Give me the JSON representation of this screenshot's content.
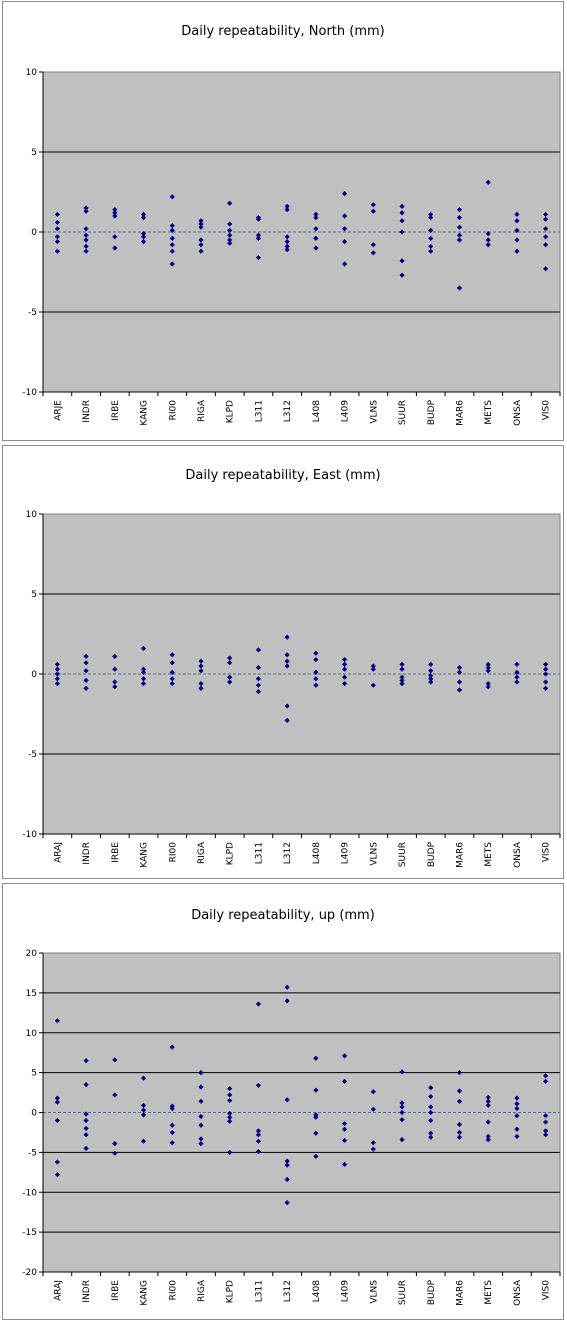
{
  "chart_data": [
    {
      "type": "scatter",
      "title": "Daily repeatability, North (mm)",
      "categories": [
        "ARJE",
        "INDR",
        "IRBE",
        "KANG",
        "RI00",
        "RIGA",
        "KLPD",
        "L311",
        "L312",
        "L408",
        "L409",
        "VLNS",
        "SUUR",
        "BUDP",
        "MAR6",
        "METS",
        "ONSA",
        "VIS0"
      ],
      "ylim": [
        -10,
        10
      ],
      "yticks": [
        -10,
        -5,
        0,
        5,
        10
      ],
      "gridlines": [
        -5,
        5
      ],
      "points": [
        [
          1.1,
          0.6,
          0.2,
          -0.3,
          -0.6,
          -1.2
        ],
        [
          1.5,
          1.3,
          0.2,
          -0.2,
          -0.5,
          -0.9,
          -1.2
        ],
        [
          1.4,
          1.2,
          1.0,
          -0.3,
          -1.0
        ],
        [
          1.1,
          0.9,
          -0.1,
          -0.3,
          -0.6
        ],
        [
          2.2,
          0.4,
          0.1,
          -0.4,
          -0.8,
          -1.2,
          -2.0
        ],
        [
          0.7,
          0.5,
          0.3,
          -0.5,
          -0.8,
          -1.2
        ],
        [
          1.8,
          0.5,
          0.1,
          -0.2,
          -0.5,
          -0.7
        ],
        [
          0.9,
          0.8,
          -0.2,
          -0.4,
          -1.6
        ],
        [
          1.6,
          1.4,
          -0.3,
          -0.6,
          -0.9,
          -1.1
        ],
        [
          1.1,
          0.9,
          0.2,
          -0.4,
          -1.0
        ],
        [
          2.4,
          1.0,
          0.2,
          -0.6,
          -2.0
        ],
        [
          1.7,
          1.3,
          -0.8,
          -1.3
        ],
        [
          1.6,
          1.2,
          0.7,
          0.0,
          -1.8,
          -2.7
        ],
        [
          1.1,
          0.9,
          0.1,
          -0.4,
          -0.9,
          -1.2
        ],
        [
          1.4,
          0.9,
          0.3,
          -0.2,
          -0.5,
          -3.5
        ],
        [
          3.1,
          -0.1,
          -0.5,
          -0.8
        ],
        [
          1.1,
          0.7,
          0.1,
          -0.5,
          -1.2
        ],
        [
          1.1,
          0.8,
          0.2,
          -0.3,
          -0.8,
          -2.3
        ]
      ]
    },
    {
      "type": "scatter",
      "title": "Daily repeatability, East (mm)",
      "categories": [
        "ARAJ",
        "INDR",
        "IRBE",
        "KANG",
        "RI00",
        "RIGA",
        "KLPD",
        "L311",
        "L312",
        "L408",
        "L409",
        "VLNS",
        "SUUR",
        "BUDP",
        "MAR6",
        "METS",
        "ONSA",
        "VIS0"
      ],
      "ylim": [
        -10,
        10
      ],
      "yticks": [
        -10,
        -5,
        0,
        5,
        10
      ],
      "gridlines": [
        -5,
        5
      ],
      "points": [
        [
          0.6,
          0.3,
          0.0,
          -0.3,
          -0.6
        ],
        [
          1.1,
          0.7,
          0.2,
          -0.4,
          -0.9
        ],
        [
          1.1,
          0.3,
          -0.5,
          -0.8
        ],
        [
          1.6,
          0.3,
          0.1,
          -0.3,
          -0.6
        ],
        [
          1.2,
          0.7,
          0.1,
          -0.3,
          -0.6
        ],
        [
          0.8,
          0.5,
          0.2,
          -0.6,
          -0.9
        ],
        [
          1.0,
          0.7,
          -0.2,
          -0.5
        ],
        [
          1.5,
          0.4,
          -0.3,
          -0.7,
          -1.1
        ],
        [
          2.3,
          1.2,
          0.8,
          0.5,
          -2.0,
          -2.9
        ],
        [
          1.3,
          0.9,
          0.1,
          -0.3,
          -0.7
        ],
        [
          0.9,
          0.6,
          0.3,
          -0.2,
          -0.6
        ],
        [
          0.5,
          0.3,
          -0.7
        ],
        [
          0.6,
          0.3,
          -0.2,
          -0.4,
          -0.6
        ],
        [
          0.6,
          0.2,
          -0.1,
          -0.3,
          -0.5
        ],
        [
          0.4,
          0.1,
          -0.5,
          -1.0
        ],
        [
          0.6,
          0.4,
          0.2,
          -0.6,
          -0.8
        ],
        [
          0.6,
          0.1,
          -0.2,
          -0.5
        ],
        [
          0.6,
          0.3,
          0.0,
          -0.5,
          -0.9
        ]
      ]
    },
    {
      "type": "scatter",
      "title": "Daily repeatability, up (mm)",
      "categories": [
        "ARAJ",
        "INDR",
        "IRBE",
        "KANG",
        "RI00",
        "RIGA",
        "KLPD",
        "L311",
        "L312",
        "L408",
        "L409",
        "VLNS",
        "SUUR",
        "BUDP",
        "MAR6",
        "METS",
        "ONSA",
        "VIS0"
      ],
      "ylim": [
        -20,
        20
      ],
      "yticks": [
        -20,
        -15,
        -10,
        -5,
        0,
        5,
        10,
        15,
        20
      ],
      "gridlines": [
        -15,
        -10,
        -5,
        5,
        10,
        15
      ],
      "points": [
        [
          11.5,
          1.8,
          1.3,
          -1.0,
          -6.2,
          -7.8
        ],
        [
          6.5,
          3.5,
          -0.2,
          -1.0,
          -2.0,
          -2.8,
          -4.5
        ],
        [
          6.6,
          2.2,
          -3.9,
          -5.1
        ],
        [
          4.3,
          0.9,
          0.3,
          -0.3,
          -3.6
        ],
        [
          8.2,
          0.8,
          0.5,
          -1.6,
          -2.5,
          -3.8
        ],
        [
          5.0,
          3.2,
          1.4,
          -0.5,
          -1.6,
          -3.3,
          -3.9
        ],
        [
          3.0,
          2.2,
          1.5,
          -0.1,
          -0.6,
          -1.1,
          -5.0
        ],
        [
          13.6,
          3.4,
          -2.3,
          -2.8,
          -3.6,
          -4.9
        ],
        [
          15.7,
          14.0,
          1.6,
          -6.1,
          -6.6,
          -8.4,
          -11.3
        ],
        [
          6.8,
          2.8,
          -0.3,
          -0.6,
          -2.6,
          -5.5
        ],
        [
          7.1,
          3.9,
          -1.4,
          -2.1,
          -3.5,
          -6.5
        ],
        [
          2.6,
          0.4,
          -3.8,
          -4.6
        ],
        [
          5.1,
          1.2,
          0.7,
          0.0,
          -0.9,
          -3.4
        ],
        [
          3.1,
          2.0,
          0.7,
          0.0,
          -1.0,
          -2.6,
          -3.1
        ],
        [
          5.0,
          2.7,
          1.4,
          -1.5,
          -2.5,
          -3.1
        ],
        [
          1.9,
          1.4,
          0.9,
          -1.2,
          -3.0,
          -3.4
        ],
        [
          1.8,
          1.1,
          0.5,
          -0.4,
          -2.1,
          -3.0
        ],
        [
          4.6,
          3.9,
          -0.4,
          -1.2,
          -2.3,
          -2.8
        ]
      ]
    }
  ],
  "colors": {
    "plot_bg": "#c0c0c0",
    "gridline": "#000000",
    "zero_line": "#5a6a8a",
    "marker": "#000080"
  }
}
